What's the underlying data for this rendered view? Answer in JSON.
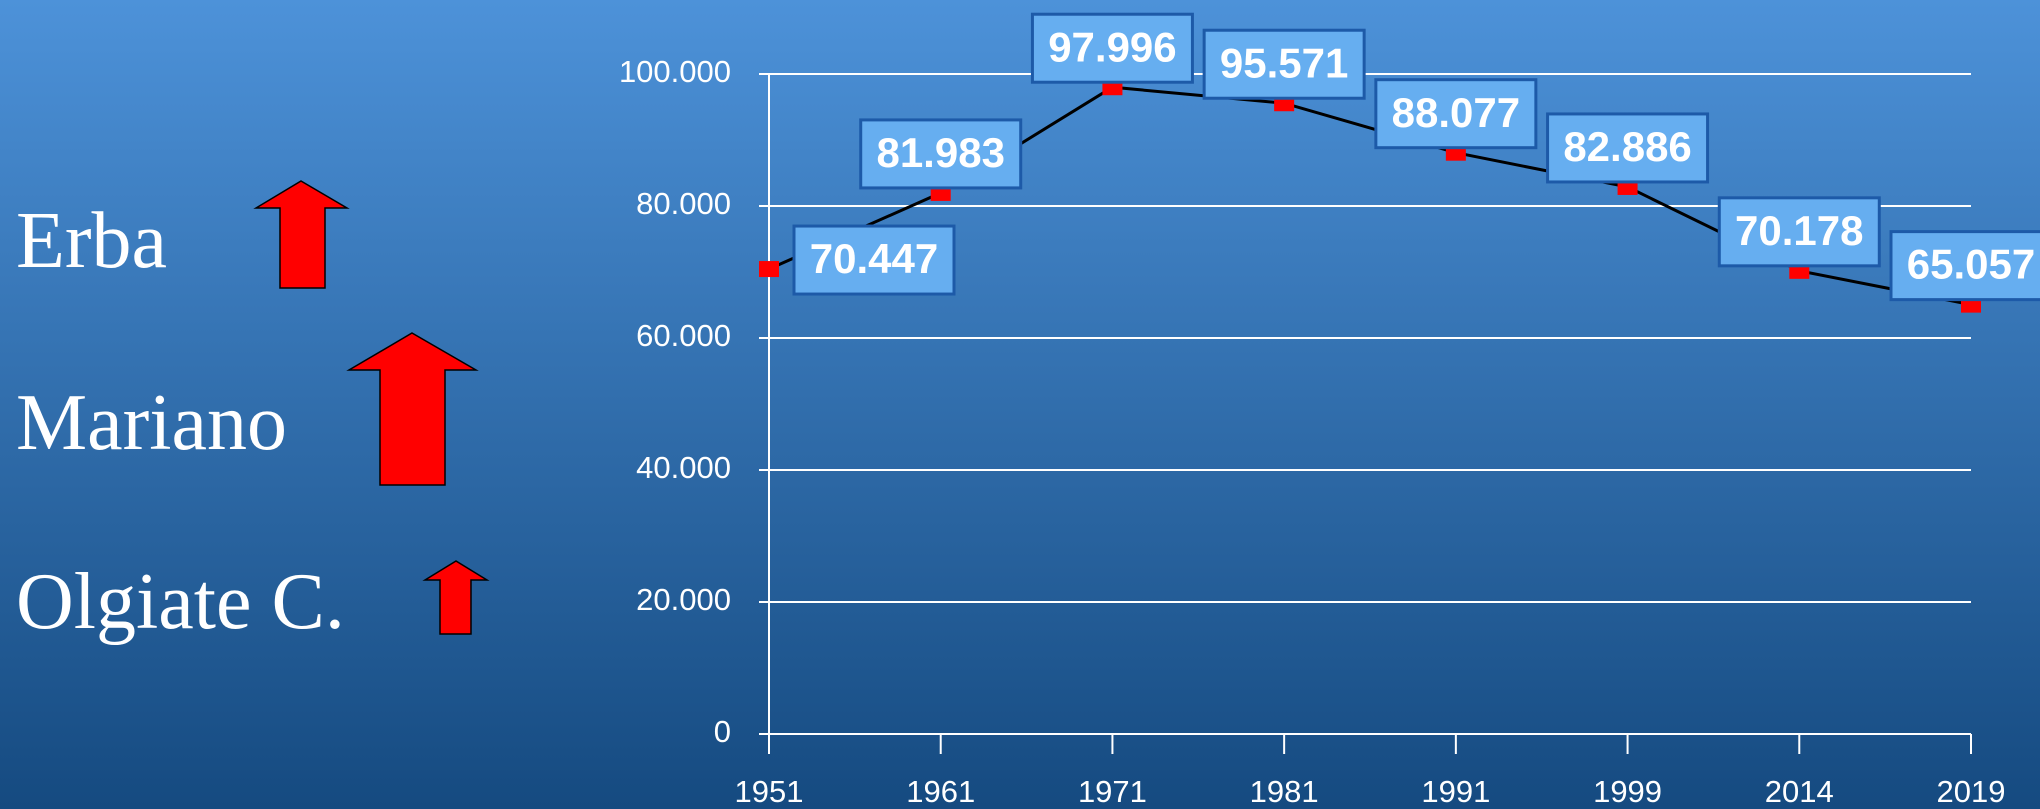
{
  "side_labels": [
    "Erba",
    "Mariano",
    "Olgiate C."
  ],
  "chart_data": {
    "type": "line",
    "categories": [
      "1951",
      "1961",
      "1971",
      "1981",
      "1991",
      "1999",
      "2014",
      "2019"
    ],
    "values": [
      70447,
      81983,
      97996,
      95571,
      88077,
      82886,
      70178,
      65057
    ],
    "value_labels": [
      "70.447",
      "81.983",
      "97.996",
      "95.571",
      "88.077",
      "82.886",
      "70.178",
      "65.057"
    ],
    "color": "#000000",
    "marker_color": "#ff0000",
    "ylim": [
      0,
      100000
    ],
    "yticks": [
      0,
      {
        "value": 20000,
        "label": "20.000"
      },
      {
        "value": 40000,
        "label": "40.000"
      },
      {
        "value": 60000,
        "label": "60.000"
      },
      {
        "value": 80000,
        "label": "80.000"
      },
      {
        "value": 100000,
        "label": "100.000"
      }
    ],
    "grid": true
  }
}
